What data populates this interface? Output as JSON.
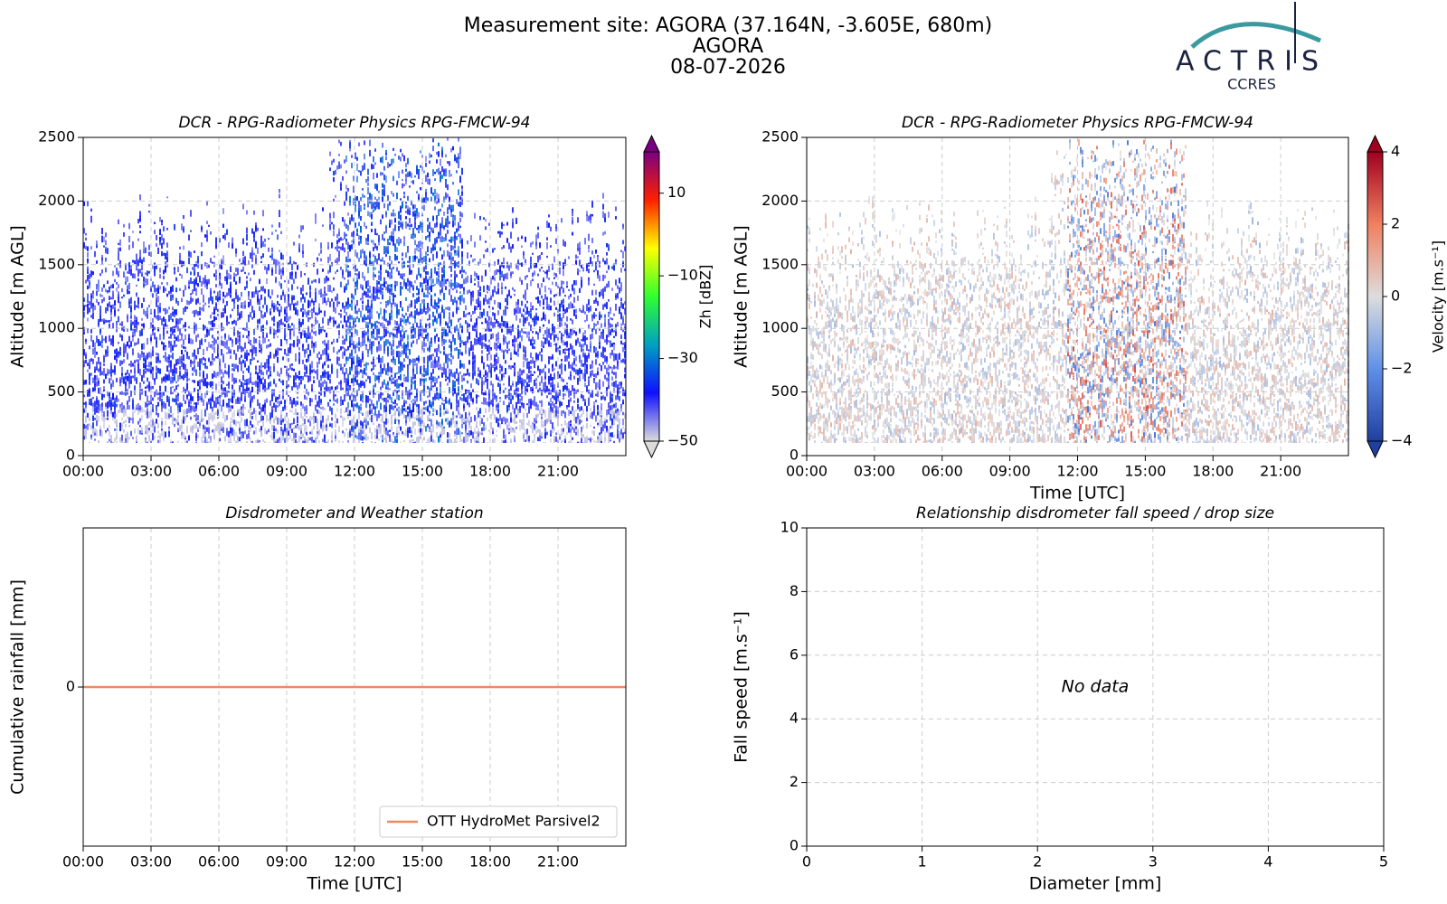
{
  "header": {
    "title_lines": [
      "Measurement site: AGORA (37.164N, -3.605E, 680m)",
      "AGORA",
      "08-07-2026"
    ],
    "logo": {
      "text": "ACTRIS",
      "subtext": "CCRES"
    }
  },
  "chart_data": [
    {
      "type": "heatmap",
      "title": "DCR - RPG-Radiometer Physics RPG-FMCW-94",
      "y_label": "Altitude [m AGL]",
      "xlim": [
        0,
        24
      ],
      "xticks": [
        {
          "value": 0,
          "label": "00:00"
        },
        {
          "value": 3,
          "label": "03:00"
        },
        {
          "value": 6,
          "label": "06:00"
        },
        {
          "value": 9,
          "label": "09:00"
        },
        {
          "value": 12,
          "label": "12:00"
        },
        {
          "value": 15,
          "label": "15:00"
        },
        {
          "value": 18,
          "label": "18:00"
        },
        {
          "value": 21,
          "label": "21:00"
        }
      ],
      "ylim": [
        0,
        2500
      ],
      "yticks": [
        0,
        500,
        1000,
        1500,
        2000,
        2500
      ],
      "grid": true,
      "colorbar": {
        "label": "Zh [dBZ]",
        "lim": [
          -50,
          20
        ],
        "ticks": [
          10,
          {
            "value": -10,
            "label": "−10"
          },
          {
            "value": -30,
            "label": "−30"
          },
          {
            "value": -50,
            "label": "−50"
          }
        ],
        "colors": [
          "#dcdcdc",
          "#1010ff",
          "#00a0c0",
          "#30ff30",
          "#ffff00",
          "#ff2000",
          "#7a0080"
        ]
      }
    },
    {
      "type": "heatmap",
      "title": "DCR - RPG-Radiometer Physics RPG-FMCW-94",
      "y_label": "Altitude [m AGL]",
      "x_label": "Time [UTC]",
      "xlim": [
        0,
        24
      ],
      "xticks": [
        {
          "value": 0,
          "label": "00:00"
        },
        {
          "value": 3,
          "label": "03:00"
        },
        {
          "value": 6,
          "label": "06:00"
        },
        {
          "value": 9,
          "label": "09:00"
        },
        {
          "value": 12,
          "label": "12:00"
        },
        {
          "value": 15,
          "label": "15:00"
        },
        {
          "value": 18,
          "label": "18:00"
        },
        {
          "value": 21,
          "label": "21:00"
        }
      ],
      "ylim": [
        0,
        2500
      ],
      "yticks": [
        0,
        500,
        1000,
        1500,
        2000,
        2500
      ],
      "grid": true,
      "colorbar": {
        "label": "Velocity [m.s⁻¹]",
        "lim": [
          -4,
          4
        ],
        "ticks": [
          4,
          2,
          0,
          {
            "value": -2,
            "label": "−2"
          },
          {
            "value": -4,
            "label": "−4"
          }
        ],
        "colors": [
          "#2040a0",
          "#6090e8",
          "#dddddd",
          "#f08060",
          "#a00020"
        ]
      }
    },
    {
      "type": "line",
      "title": "Disdrometer and Weather station",
      "y_label": "Cumulative rainfall [mm]",
      "x_label": "Time [UTC]",
      "xlim": [
        0,
        24
      ],
      "xticks": [
        {
          "value": 0,
          "label": "00:00"
        },
        {
          "value": 3,
          "label": "03:00"
        },
        {
          "value": 6,
          "label": "06:00"
        },
        {
          "value": 9,
          "label": "09:00"
        },
        {
          "value": 12,
          "label": "12:00"
        },
        {
          "value": 15,
          "label": "15:00"
        },
        {
          "value": 18,
          "label": "18:00"
        },
        {
          "value": 21,
          "label": "21:00"
        }
      ],
      "ylim": [
        -0.05,
        0.05
      ],
      "yticks": [
        0
      ],
      "grid": true,
      "legend": "lower right",
      "series": [
        {
          "name": "OTT HydroMet Parsivel2",
          "color": "#ee8a5e",
          "x": [
            0,
            24
          ],
          "values": [
            0,
            0
          ]
        }
      ]
    },
    {
      "type": "scatter",
      "title": "Relationship disdrometer fall speed / drop size",
      "y_label": "Fall speed [m.s⁻¹]",
      "x_label": "Diameter [mm]",
      "xlim": [
        0,
        5
      ],
      "xticks": [
        0,
        1,
        2,
        3,
        4,
        5
      ],
      "ylim": [
        0,
        10
      ],
      "yticks": [
        0,
        2,
        4,
        6,
        8,
        10
      ],
      "grid": true,
      "annotation": "No data"
    }
  ]
}
